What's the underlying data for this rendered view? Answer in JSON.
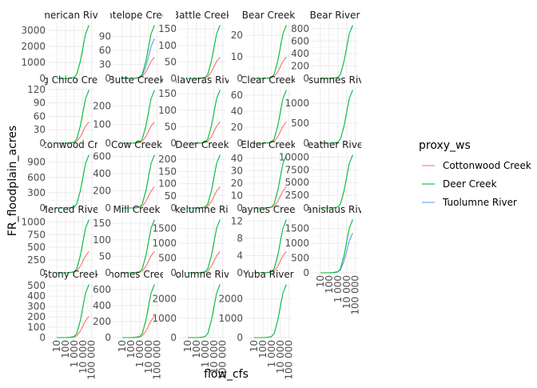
{
  "chart_data": {
    "type": "line",
    "facet_by": "watershed",
    "xlabel": "flow_cfs",
    "ylabel": "FR_floodplain_acres",
    "x_scale": "log10",
    "x_ticks": [
      "10",
      "100",
      "1 000",
      "10 000",
      "100 000"
    ],
    "x_tick_values": [
      10,
      100,
      1000,
      10000,
      100000
    ],
    "xlim": [
      1,
      200000
    ],
    "grid": true,
    "legend": {
      "title": "proxy_ws",
      "position": "right",
      "entries": [
        {
          "name": "Cottonwood Creek",
          "color": "#F8766D"
        },
        {
          "name": "Deer Creek",
          "color": "#00BA38"
        },
        {
          "name": "Tuolumne River",
          "color": "#619CFF"
        }
      ]
    },
    "x_values": [
      10,
      100,
      300,
      1000,
      2000,
      5000,
      10000,
      20000,
      50000
    ],
    "shape_values": {
      "Deer Creek": [
        0.0,
        0.0,
        0.005,
        0.02,
        0.08,
        0.32,
        0.58,
        0.84,
        1.0
      ],
      "Cottonwood Creek": [
        0.0,
        0.0,
        0.003,
        0.012,
        0.035,
        0.12,
        0.22,
        0.32,
        0.4
      ],
      "Tuolumne River": [
        0.0,
        0.0,
        0.004,
        0.015,
        0.06,
        0.22,
        0.4,
        0.6,
        0.75
      ]
    },
    "panels": [
      {
        "title": "American River",
        "ylim": [
          0,
          3500
        ],
        "y_ticks": [
          0,
          1000,
          2000,
          3000
        ],
        "y_tick_labels": [
          "0",
          "1000",
          "2000",
          "3000"
        ],
        "proxy": [
          "Deer Creek"
        ]
      },
      {
        "title": "Antelope Creek",
        "ylim": [
          0,
          120
        ],
        "y_ticks": [
          0,
          30,
          60,
          90
        ],
        "y_tick_labels": [
          "0",
          "30",
          "60",
          "90"
        ],
        "proxy": [
          "Deer Creek",
          "Cottonwood Creek",
          "Tuolumne River"
        ]
      },
      {
        "title": "Battle Creek",
        "ylim": [
          0,
          170
        ],
        "y_ticks": [
          0,
          50,
          100,
          150
        ],
        "y_tick_labels": [
          "0",
          "50",
          "100",
          "150"
        ],
        "proxy": [
          "Deer Creek",
          "Cottonwood Creek"
        ]
      },
      {
        "title": "Bear Creek",
        "ylim": [
          0,
          26
        ],
        "y_ticks": [
          0,
          10,
          20
        ],
        "y_tick_labels": [
          "0",
          "10",
          "20"
        ],
        "proxy": [
          "Deer Creek",
          "Cottonwood Creek"
        ]
      },
      {
        "title": "Bear River",
        "ylim": [
          0,
          900
        ],
        "y_ticks": [
          0,
          200,
          400,
          600,
          800
        ],
        "y_tick_labels": [
          "0",
          "200",
          "400",
          "600",
          "800"
        ],
        "proxy": [
          "Deer Creek"
        ]
      },
      {
        "title": "Big Chico Creek",
        "ylim": [
          0,
          125
        ],
        "y_ticks": [
          0,
          30,
          60,
          90,
          120
        ],
        "y_tick_labels": [
          "0",
          "30",
          "60",
          "90",
          "120"
        ],
        "proxy": [
          "Deer Creek",
          "Cottonwood Creek"
        ]
      },
      {
        "title": "Butte Creek",
        "ylim": [
          0,
          300
        ],
        "y_ticks": [
          0,
          100,
          200
        ],
        "y_tick_labels": [
          "0",
          "100",
          "200"
        ],
        "proxy": [
          "Deer Creek",
          "Cottonwood Creek"
        ]
      },
      {
        "title": "Calaveras River",
        "ylim": [
          0,
          170
        ],
        "y_ticks": [
          0,
          50,
          100,
          150
        ],
        "y_tick_labels": [
          "0",
          "50",
          "100",
          "150"
        ],
        "proxy": [
          "Deer Creek",
          "Cottonwood Creek"
        ]
      },
      {
        "title": "Clear Creek",
        "ylim": [
          0,
          70
        ],
        "y_ticks": [
          0,
          20,
          40,
          60
        ],
        "y_tick_labels": [
          "0",
          "20",
          "40",
          "60"
        ],
        "proxy": [
          "Deer Creek",
          "Cottonwood Creek"
        ]
      },
      {
        "title": "Cosumnes River",
        "ylim": [
          0,
          1400
        ],
        "y_ticks": [
          0,
          500,
          1000
        ],
        "y_tick_labels": [
          "0",
          "500",
          "1000"
        ],
        "proxy": [
          "Deer Creek"
        ]
      },
      {
        "title": "Cottonwood Creek",
        "ylim": [
          0,
          1100
        ],
        "y_ticks": [
          0,
          300,
          600,
          900
        ],
        "y_tick_labels": [
          "0",
          "300",
          "600",
          "900"
        ],
        "proxy": [
          "Deer Creek"
        ]
      },
      {
        "title": "Cow Creek",
        "ylim": [
          0,
          650
        ],
        "y_ticks": [
          0,
          200,
          400,
          600
        ],
        "y_tick_labels": [
          "0",
          "200",
          "400",
          "600"
        ],
        "proxy": [
          "Deer Creek",
          "Cottonwood Creek"
        ]
      },
      {
        "title": "Deer Creek",
        "ylim": [
          0,
          230
        ],
        "y_ticks": [
          0,
          50,
          100,
          150,
          200
        ],
        "y_tick_labels": [
          "0",
          "50",
          "100",
          "150",
          "200"
        ],
        "proxy": [
          "Deer Creek",
          "Cottonwood Creek"
        ]
      },
      {
        "title": "Elder Creek",
        "ylim": [
          0,
          45
        ],
        "y_ticks": [
          0,
          10,
          20,
          30,
          40
        ],
        "y_tick_labels": [
          "0",
          "10",
          "20",
          "30",
          "40"
        ],
        "proxy": [
          "Deer Creek",
          "Cottonwood Creek"
        ]
      },
      {
        "title": "Feather River",
        "ylim": [
          0,
          11000
        ],
        "y_ticks": [
          0,
          2500,
          5000,
          7500,
          10000
        ],
        "y_tick_labels": [
          "0",
          "2500",
          "5000",
          "7500",
          "10000"
        ],
        "proxy": [
          "Deer Creek"
        ]
      },
      {
        "title": "Merced River",
        "ylim": [
          0,
          1100
        ],
        "y_ticks": [
          0,
          250,
          500,
          750,
          1000
        ],
        "y_tick_labels": [
          "0",
          "250",
          "500",
          "750",
          "1000"
        ],
        "proxy": [
          "Deer Creek",
          "Cottonwood Creek"
        ]
      },
      {
        "title": "Mill Creek",
        "ylim": [
          0,
          170
        ],
        "y_ticks": [
          0,
          50,
          100,
          150
        ],
        "y_tick_labels": [
          "0",
          "50",
          "100",
          "150"
        ],
        "proxy": [
          "Deer Creek",
          "Cottonwood Creek"
        ]
      },
      {
        "title": "Mokelumne River",
        "ylim": [
          0,
          1900
        ],
        "y_ticks": [
          0,
          500,
          1000,
          1500
        ],
        "y_tick_labels": [
          "0",
          "500",
          "1000",
          "1500"
        ],
        "proxy": [
          "Deer Creek",
          "Cottonwood Creek"
        ]
      },
      {
        "title": "Paynes Creek",
        "ylim": [
          0,
          13
        ],
        "y_ticks": [
          0,
          4,
          8,
          12
        ],
        "y_tick_labels": [
          "0",
          "4",
          "8",
          "12"
        ],
        "proxy": [
          "Deer Creek",
          "Cottonwood Creek"
        ]
      },
      {
        "title": "Stanislaus River",
        "ylim": [
          0,
          1900
        ],
        "y_ticks": [
          0,
          500,
          1000,
          1500
        ],
        "y_tick_labels": [
          "0",
          "500",
          "1000",
          "1500"
        ],
        "proxy": [
          "Deer Creek",
          "Tuolumne River"
        ]
      },
      {
        "title": "Stony Creek",
        "ylim": [
          0,
          540
        ],
        "y_ticks": [
          0,
          100,
          200,
          300,
          400,
          500
        ],
        "y_tick_labels": [
          "0",
          "100",
          "200",
          "300",
          "400",
          "500"
        ],
        "proxy": [
          "Deer Creek",
          "Cottonwood Creek"
        ]
      },
      {
        "title": "Thomes Creek",
        "ylim": [
          0,
          700
        ],
        "y_ticks": [
          0,
          200,
          400,
          600
        ],
        "y_tick_labels": [
          "0",
          "200",
          "400",
          "600"
        ],
        "proxy": [
          "Deer Creek",
          "Cottonwood Creek"
        ]
      },
      {
        "title": "Tuolumne River",
        "ylim": [
          0,
          2900
        ],
        "y_ticks": [
          0,
          1000,
          2000
        ],
        "y_tick_labels": [
          "0",
          "1000",
          "2000"
        ],
        "proxy": [
          "Deer Creek"
        ]
      },
      {
        "title": "Yuba River",
        "ylim": [
          0,
          2900
        ],
        "y_ticks": [
          0,
          1000,
          2000
        ],
        "y_tick_labels": [
          "0",
          "1000",
          "2000"
        ],
        "proxy": [
          "Deer Creek"
        ]
      }
    ]
  }
}
